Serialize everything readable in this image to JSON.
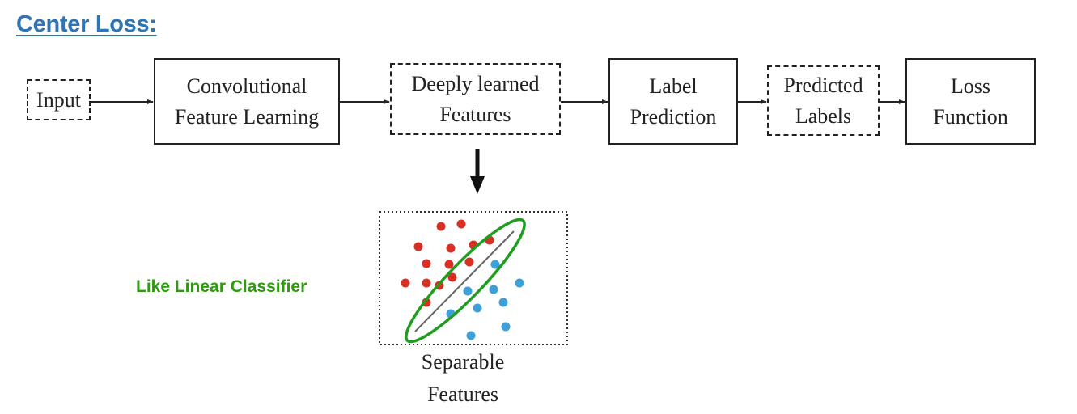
{
  "title": "Center Loss:",
  "pipeline": {
    "input": "Input",
    "conv_line1": "Convolutional",
    "conv_line2": "Feature Learning",
    "deep_line1": "Deeply learned",
    "deep_line2": "Features",
    "label_line1": "Label",
    "label_line2": "Prediction",
    "pred_line1": "Predicted",
    "pred_line2": "Labels",
    "loss_line1": "Loss",
    "loss_line2": "Function"
  },
  "plot": {
    "caption_line1": "Separable",
    "caption_line2": "Features",
    "annotation": "Like Linear Classifier",
    "annotation_color": "#2E9A10",
    "ellipse_color": "#1E9E1E",
    "red_color": "#D93025",
    "blue_color": "#3DA0D8"
  }
}
